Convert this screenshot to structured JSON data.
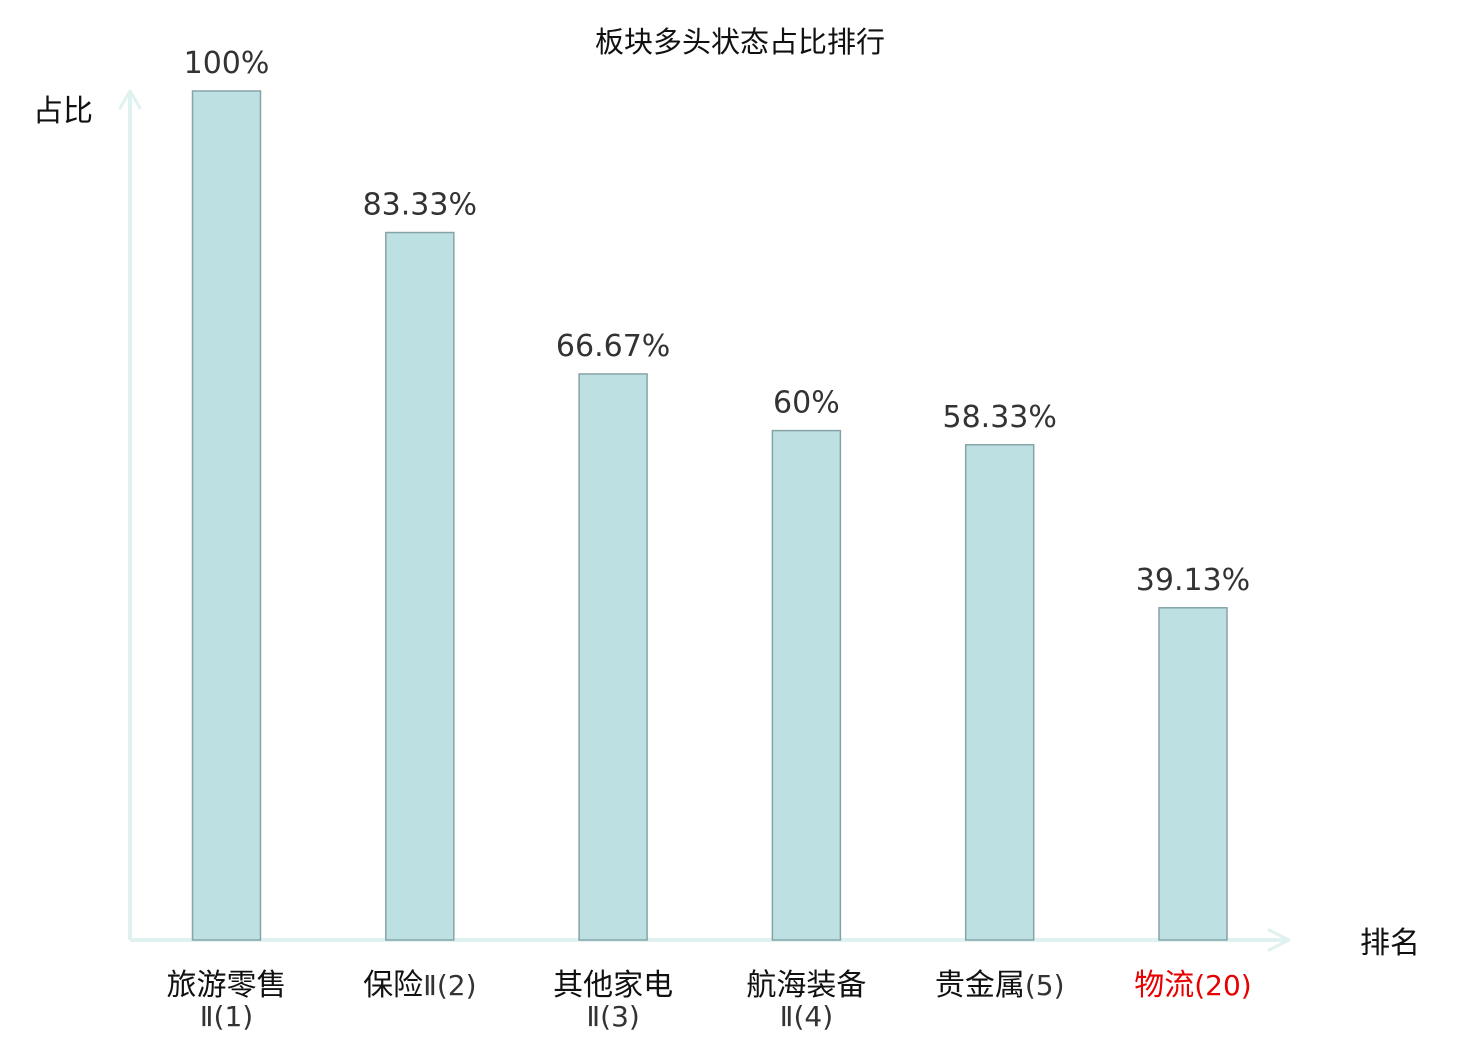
{
  "chart_data": {
    "type": "bar",
    "title": "板块多头状态占比排行",
    "ylabel": "占比",
    "xlabel": "排名",
    "ylim": [
      0,
      100
    ],
    "grid": false,
    "categories": [
      {
        "name": "旅游零售",
        "suffix": "Ⅱ(1)",
        "highlight": false
      },
      {
        "name": "保险",
        "suffix": "Ⅱ(2)",
        "highlight": false
      },
      {
        "name": "其他家电",
        "suffix": "Ⅱ(3)",
        "highlight": false
      },
      {
        "name": "航海装备",
        "suffix": "Ⅱ(4)",
        "highlight": false
      },
      {
        "name": "贵金属",
        "suffix": "(5)",
        "highlight": false
      },
      {
        "name": "物流",
        "suffix": "(20)",
        "highlight": true
      }
    ],
    "values": [
      100,
      83.33,
      66.67,
      60,
      58.33,
      39.13
    ],
    "value_labels": [
      "100%",
      "83.33%",
      "66.67%",
      "60%",
      "58.33%",
      "39.13%"
    ]
  },
  "colors": {
    "bar_fill": "#bde0e3",
    "bar_stroke": "#86a4a8",
    "axis": "#e0f2ef",
    "label_text": "#333333",
    "category_text": "#111111",
    "highlight_text": "#e60000"
  }
}
